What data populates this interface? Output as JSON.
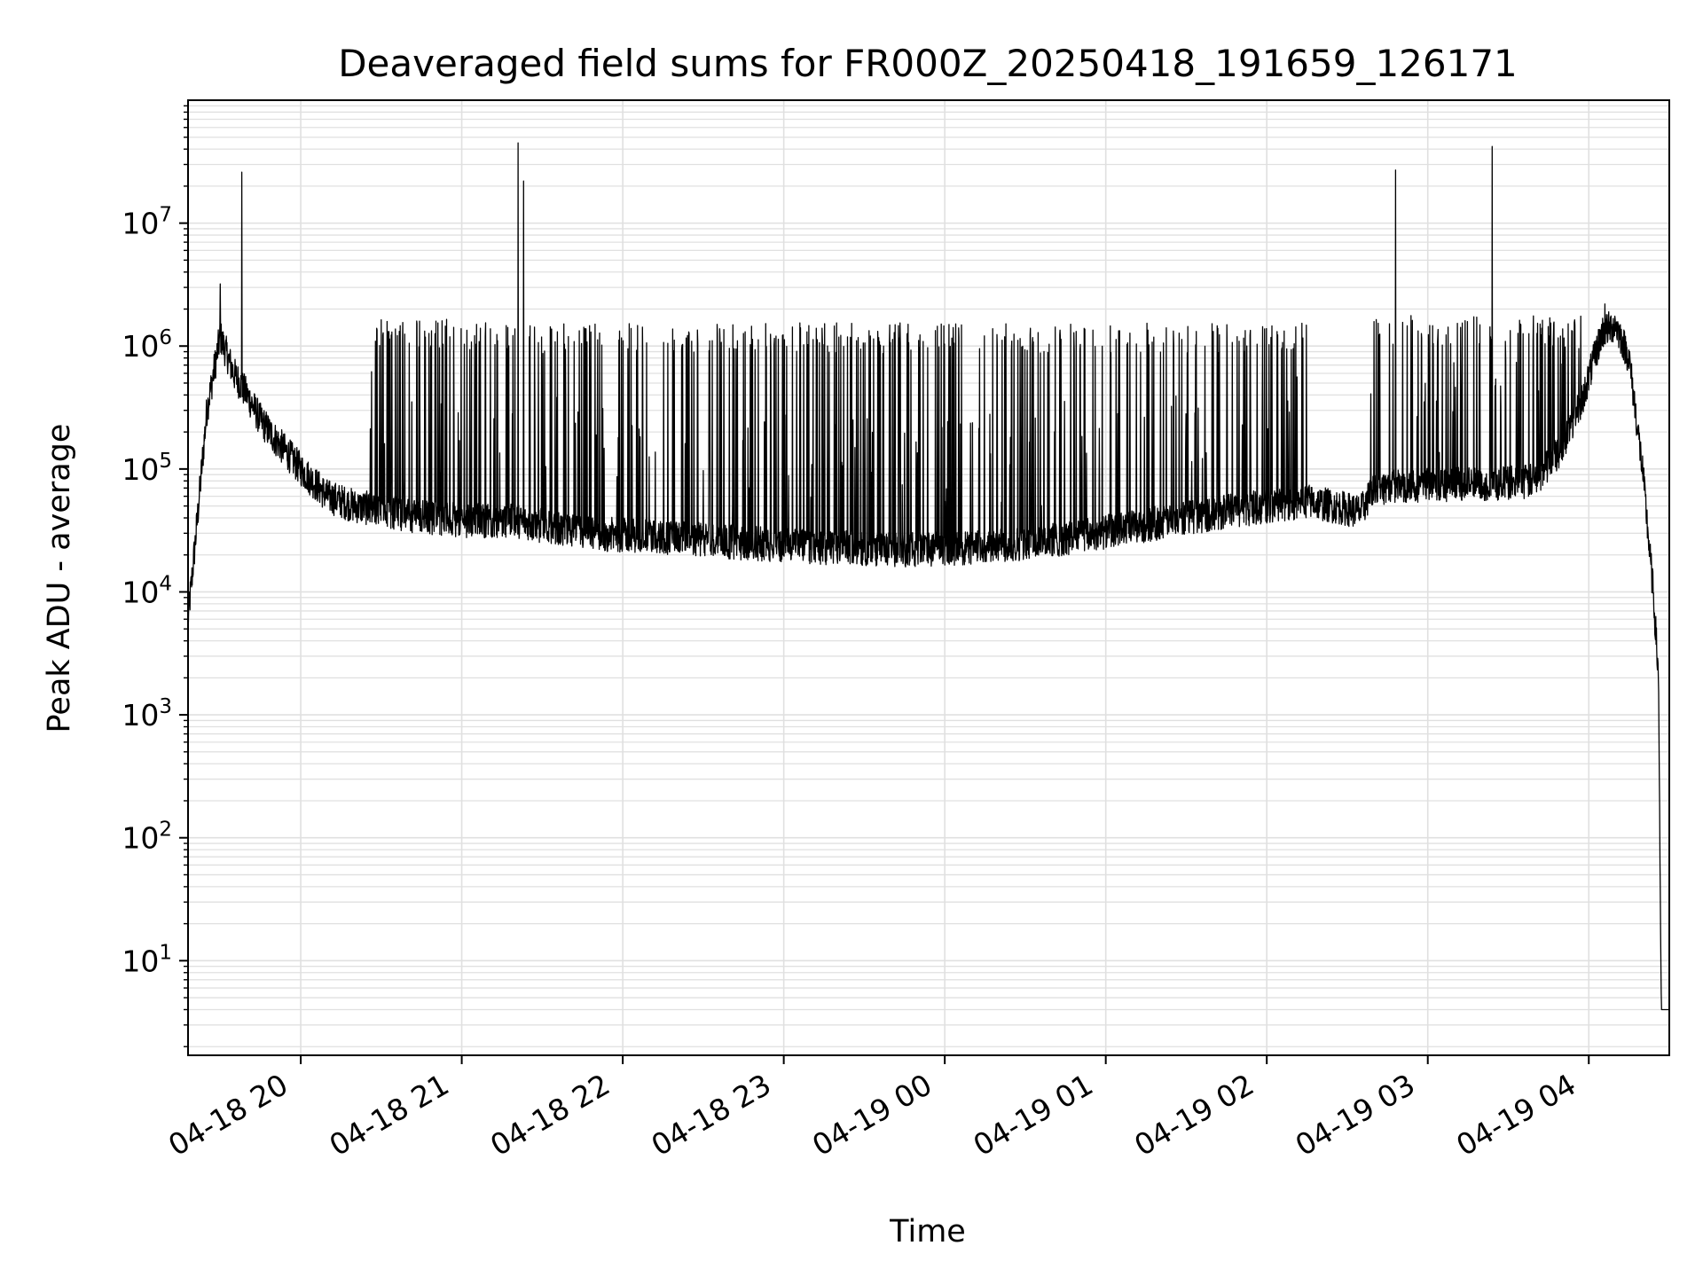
{
  "chart_data": {
    "type": "line",
    "title": "Deaveraged field sums for FR000Z_20250418_191659_126171",
    "xlabel": "Time",
    "ylabel": "Peak ADU - average",
    "yscale": "log",
    "xlim": [
      "04-18 19:18",
      "04-19 04:30"
    ],
    "ylim": [
      1.7,
      100000000
    ],
    "x_tick_labels": [
      "04-18 20",
      "04-18 21",
      "04-18 22",
      "04-18 23",
      "04-19 00",
      "04-19 01",
      "04-19 02",
      "04-19 03",
      "04-19 04"
    ],
    "y_tick_labels": [
      {
        "base": "10",
        "exp": "1"
      },
      {
        "base": "10",
        "exp": "2"
      },
      {
        "base": "10",
        "exp": "3"
      },
      {
        "base": "10",
        "exp": "4"
      },
      {
        "base": "10",
        "exp": "5"
      },
      {
        "base": "10",
        "exp": "6"
      },
      {
        "base": "10",
        "exp": "7"
      }
    ],
    "grid": true,
    "line_color": "#000000",
    "grid_color": "#e0e0e0",
    "series": [
      {
        "baseline": {
          "x": [
            "04-18 19:18",
            "04-18 19:21",
            "04-18 19:25",
            "04-18 19:30",
            "04-18 19:35",
            "04-18 19:40",
            "04-18 19:45",
            "04-18 19:50",
            "04-18 20:00",
            "04-18 20:10",
            "04-18 20:20",
            "04-18 20:40",
            "04-18 21:00",
            "04-18 21:20",
            "04-18 21:45",
            "04-18 22:15",
            "04-18 22:45",
            "04-18 23:15",
            "04-18 23:45",
            "04-19 00:15",
            "04-19 00:45",
            "04-19 01:15",
            "04-19 01:45",
            "04-19 02:15",
            "04-19 02:35",
            "04-19 02:40",
            "04-19 03:00",
            "04-19 03:20",
            "04-19 03:40",
            "04-19 03:50",
            "04-19 03:58",
            "04-19 04:05",
            "04-19 04:10",
            "04-19 04:15",
            "04-19 04:20",
            "04-19 04:24",
            "04-19 04:26",
            "04-19 04:27",
            "04-19 04:30"
          ],
          "y": [
            6000,
            30000,
            300000,
            1200000,
            600000,
            400000,
            250000,
            180000,
            100000,
            60000,
            50000,
            42000,
            38000,
            38000,
            30000,
            28000,
            25000,
            23000,
            22000,
            23000,
            27000,
            35000,
            45000,
            55000,
            45000,
            70000,
            75000,
            75000,
            80000,
            150000,
            400000,
            1300000,
            1500000,
            800000,
            100000,
            10000,
            2000,
            4,
            4
          ]
        },
        "spikes": [
          {
            "x": "04-18 19:30",
            "y": 3200000
          },
          {
            "x": "04-18 19:38",
            "y": 26000000
          },
          {
            "x": "04-18 21:21",
            "y": 45000000
          },
          {
            "x": "04-18 21:23",
            "y": 22000000
          },
          {
            "x": "04-19 02:48",
            "y": 27000000
          },
          {
            "x": "04-19 03:24",
            "y": 42000000
          },
          {
            "x": "04-19 04:06",
            "y": 2200000
          }
        ],
        "burst_regions": [
          {
            "start": "04-18 20:25",
            "end": "04-18 21:20",
            "peak": 1400000
          },
          {
            "start": "04-18 21:25",
            "end": "04-19 02:15",
            "peak": 1300000
          },
          {
            "start": "04-19 02:38",
            "end": "04-19 03:58",
            "peak": 1500000
          }
        ]
      }
    ]
  }
}
